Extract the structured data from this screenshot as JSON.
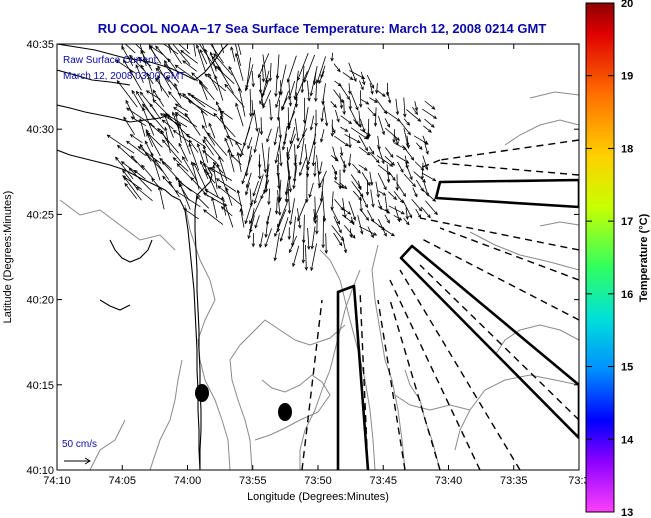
{
  "title": "RU COOL  NOAA−17  Sea Surface Temperature:  March 12, 2008 0214 GMT",
  "annotation": {
    "line1": "Raw Surface Current:",
    "line2": "March 12, 2008 03:00 GMT"
  },
  "scale_label": "50 cm/s",
  "map": {
    "xlabel": "Longitude (Degrees:Minutes)",
    "ylabel": "Latitude (Degrees:Minutes)",
    "x_ticks": [
      "74:10",
      "74:05",
      "74:00",
      "73:55",
      "73:50",
      "73:45",
      "73:40",
      "73:35",
      "73:3"
    ],
    "y_ticks": [
      "40:35",
      "40:30",
      "40:25",
      "40:20",
      "40:15",
      "40:10"
    ]
  },
  "colorbar": {
    "label": "Temperature (°C)",
    "ticks": [
      "20",
      "19",
      "18",
      "17",
      "16",
      "15",
      "14",
      "13"
    ],
    "range": [
      13,
      20
    ],
    "colors": [
      "#ff0000",
      "#ff6a00",
      "#ffd000",
      "#c8ff00",
      "#3cff3c",
      "#00e0c8",
      "#0090ff",
      "#0000ff",
      "#8a00ff",
      "#ff40ff"
    ]
  }
}
